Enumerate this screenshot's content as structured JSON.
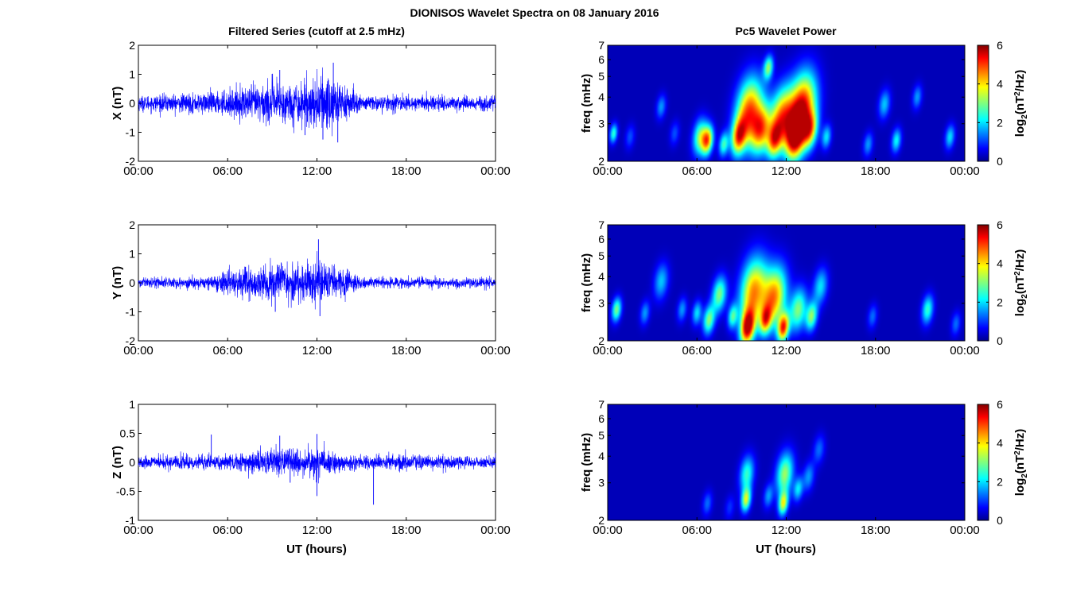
{
  "figure": {
    "title": "DIONISOS Wavelet Spectra on 08 January 2016",
    "left_title": "Filtered Series (cutoff at 2.5 mHz)",
    "right_title": "Pc5 Wavelet Power",
    "xlabel_bottom": "UT (hours)"
  },
  "colors": {
    "trace": "#0000ff",
    "jet_low": "#00008f",
    "jet_high": "#800000",
    "axes": "#000000"
  },
  "chart_data": [
    {
      "type": "line",
      "panel": "X",
      "ylabel": "X (nT)",
      "ylim": [
        -2,
        2
      ],
      "yticks": [
        "2",
        "1",
        "0",
        "-1",
        "-2"
      ],
      "x_ticks": [
        "00:00",
        "06:00",
        "12:00",
        "18:00",
        "00:00"
      ],
      "x_range_hours": [
        0,
        24
      ],
      "envelope": [
        [
          0,
          0.3
        ],
        [
          4,
          0.4
        ],
        [
          6,
          0.5
        ],
        [
          9,
          0.9
        ],
        [
          10,
          0.8
        ],
        [
          12,
          1.0
        ],
        [
          13,
          1.3
        ],
        [
          14,
          0.7
        ],
        [
          15,
          0.3
        ],
        [
          24,
          0.3
        ]
      ],
      "spikes": [
        [
          9.5,
          1.15
        ],
        [
          12.4,
          -1.25
        ],
        [
          13.1,
          1.4
        ],
        [
          13.4,
          -1.35
        ],
        [
          11.2,
          -1.1
        ]
      ]
    },
    {
      "type": "line",
      "panel": "Y",
      "ylabel": "Y (nT)",
      "ylim": [
        -2,
        2
      ],
      "yticks": [
        "2",
        "1",
        "0",
        "-1",
        "-2"
      ],
      "x_ticks": [
        "00:00",
        "06:00",
        "12:00",
        "18:00",
        "00:00"
      ],
      "x_range_hours": [
        0,
        24
      ],
      "envelope": [
        [
          0,
          0.2
        ],
        [
          5,
          0.25
        ],
        [
          6,
          0.5
        ],
        [
          7,
          0.6
        ],
        [
          9,
          0.7
        ],
        [
          12,
          0.9
        ],
        [
          14,
          0.5
        ],
        [
          15,
          0.2
        ],
        [
          24,
          0.2
        ]
      ],
      "spikes": [
        [
          12.1,
          1.5
        ],
        [
          12.2,
          -1.15
        ],
        [
          9.6,
          0.7
        ],
        [
          9.2,
          -1.0
        ]
      ]
    },
    {
      "type": "line",
      "panel": "Z",
      "ylabel": "Z (nT)",
      "ylim": [
        -1,
        1
      ],
      "yticks": [
        "1",
        "0.5",
        "0",
        "-0.5",
        "-1"
      ],
      "x_ticks": [
        "00:00",
        "06:00",
        "12:00",
        "18:00",
        "00:00"
      ],
      "x_range_hours": [
        0,
        24
      ],
      "envelope": [
        [
          0,
          0.12
        ],
        [
          6,
          0.15
        ],
        [
          9,
          0.25
        ],
        [
          12,
          0.3
        ],
        [
          14,
          0.15
        ],
        [
          24,
          0.12
        ]
      ],
      "spikes": [
        [
          4.9,
          0.48
        ],
        [
          9.5,
          0.46
        ],
        [
          12.0,
          0.49
        ],
        [
          12.0,
          -0.58
        ],
        [
          15.8,
          -0.73
        ],
        [
          10.2,
          -0.35
        ]
      ]
    },
    {
      "type": "heatmap",
      "panel": "X",
      "ylabel": "freq (mHz)",
      "ylim_mhz": [
        2,
        7
      ],
      "yscale": "log",
      "yticks": [
        "7",
        "6",
        "5",
        "4",
        "3",
        "2"
      ],
      "x_ticks": [
        "00:00",
        "06:00",
        "12:00",
        "18:00",
        "00:00"
      ],
      "colorbar": {
        "label": "log2(nT^2/Hz)",
        "ticks": [
          "6",
          "4",
          "2",
          "0"
        ],
        "range": [
          0,
          6
        ]
      },
      "blobs": [
        [
          0.4,
          2.7,
          2.5,
          0.8
        ],
        [
          1.5,
          2.6,
          1.0,
          1.0
        ],
        [
          3.6,
          3.6,
          1.5,
          1.0
        ],
        [
          4.5,
          2.7,
          1.0,
          1.0
        ],
        [
          6.2,
          2.6,
          3.0,
          1.5
        ],
        [
          6.7,
          2.5,
          4.5,
          1.2
        ],
        [
          7.8,
          2.4,
          2.5,
          1.0
        ],
        [
          8.8,
          2.6,
          4.0,
          1.5
        ],
        [
          9.5,
          3.4,
          5.0,
          2.8
        ],
        [
          10.3,
          2.8,
          4.0,
          2.0
        ],
        [
          11.2,
          2.5,
          3.5,
          1.5
        ],
        [
          11.7,
          3.2,
          4.5,
          2.5
        ],
        [
          12.6,
          2.6,
          5.5,
          2.0
        ],
        [
          13.1,
          3.6,
          5.5,
          2.8
        ],
        [
          13.6,
          2.8,
          3.5,
          1.5
        ],
        [
          10.8,
          5.5,
          3.0,
          1.0
        ],
        [
          14.7,
          2.6,
          2.0,
          1.0
        ],
        [
          17.5,
          2.4,
          1.5,
          1.0
        ],
        [
          18.6,
          3.7,
          1.8,
          1.2
        ],
        [
          19.4,
          2.5,
          2.2,
          1.0
        ],
        [
          20.8,
          4.0,
          1.5,
          1.0
        ],
        [
          23.0,
          2.6,
          2.0,
          1.0
        ]
      ]
    },
    {
      "type": "heatmap",
      "panel": "Y",
      "ylabel": "freq (mHz)",
      "ylim_mhz": [
        2,
        7
      ],
      "yscale": "log",
      "yticks": [
        "7",
        "6",
        "5",
        "4",
        "3",
        "2"
      ],
      "x_ticks": [
        "00:00",
        "06:00",
        "12:00",
        "18:00",
        "00:00"
      ],
      "colorbar": {
        "label": "log2(nT^2/Hz)",
        "ticks": [
          "6",
          "4",
          "2",
          "0"
        ],
        "range": [
          0,
          6
        ]
      },
      "blobs": [
        [
          0.6,
          2.8,
          3.0,
          1.0
        ],
        [
          2.5,
          2.7,
          1.5,
          1.0
        ],
        [
          3.6,
          3.8,
          1.8,
          1.5
        ],
        [
          5.0,
          2.8,
          1.5,
          1.0
        ],
        [
          6.0,
          2.7,
          2.0,
          1.0
        ],
        [
          6.8,
          2.5,
          3.0,
          1.2
        ],
        [
          7.5,
          3.3,
          3.0,
          1.5
        ],
        [
          8.4,
          2.6,
          2.5,
          1.0
        ],
        [
          9.4,
          2.3,
          5.5,
          1.5
        ],
        [
          9.8,
          3.4,
          4.5,
          2.8
        ],
        [
          10.6,
          2.5,
          3.5,
          1.2
        ],
        [
          11.2,
          3.2,
          4.5,
          2.5
        ],
        [
          11.8,
          2.3,
          5.0,
          1.2
        ],
        [
          12.8,
          2.8,
          3.0,
          1.8
        ],
        [
          13.7,
          2.6,
          3.0,
          1.2
        ],
        [
          14.3,
          3.6,
          2.0,
          1.5
        ],
        [
          17.8,
          2.6,
          1.2,
          1.0
        ],
        [
          21.5,
          2.8,
          2.5,
          1.2
        ],
        [
          23.4,
          2.4,
          1.2,
          1.0
        ]
      ]
    },
    {
      "type": "heatmap",
      "panel": "Z",
      "ylabel": "freq (mHz)",
      "ylim_mhz": [
        2,
        7
      ],
      "yscale": "log",
      "yticks": [
        "7",
        "6",
        "5",
        "4",
        "3",
        "2"
      ],
      "x_ticks": [
        "00:00",
        "06:00",
        "12:00",
        "18:00",
        "00:00"
      ],
      "colorbar": {
        "label": "log2(nT^2/Hz)",
        "ticks": [
          "6",
          "4",
          "2",
          "0"
        ],
        "range": [
          0,
          6
        ]
      },
      "blobs": [
        [
          9.3,
          2.5,
          3.5,
          1.0
        ],
        [
          9.35,
          3.3,
          2.5,
          1.5
        ],
        [
          11.8,
          2.4,
          3.5,
          1.0
        ],
        [
          11.9,
          3.3,
          3.2,
          1.8
        ],
        [
          12.8,
          2.8,
          2.0,
          1.0
        ],
        [
          13.5,
          3.2,
          1.5,
          1.2
        ],
        [
          14.2,
          4.3,
          1.2,
          1.2
        ],
        [
          6.7,
          2.4,
          1.2,
          1.0
        ],
        [
          10.8,
          2.6,
          1.5,
          1.0
        ],
        [
          8.2,
          2.3,
          0.8,
          1.0
        ]
      ]
    }
  ]
}
